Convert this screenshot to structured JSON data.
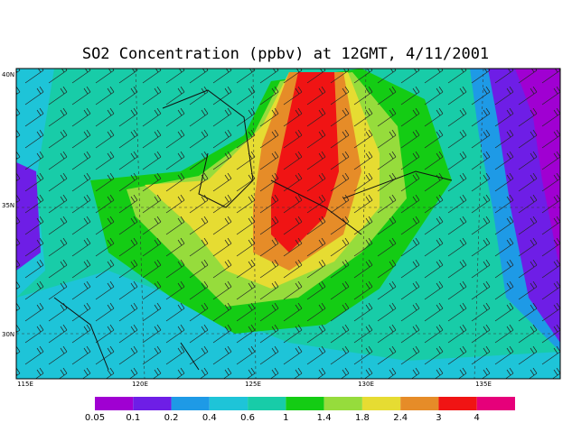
{
  "title": "SO2 Concentration (ppbv) at 12GMT, 4/11/2001",
  "map": {
    "lon_labels": [
      "115E",
      "120E",
      "125E",
      "130E",
      "135E"
    ],
    "lat_labels": [
      "40N",
      "35N",
      "30N"
    ]
  },
  "legend": {
    "labels": [
      0.05,
      0.1,
      0.2,
      0.4,
      0.6,
      1,
      1.4,
      1.8,
      2.4,
      3,
      4
    ],
    "colors": [
      "#a000d2",
      "#6e1ee6",
      "#1e9ae6",
      "#1ec4d8",
      "#18cca8",
      "#14cc14",
      "#96dc3c",
      "#e6dc32",
      "#e68c28",
      "#f01414",
      "#e6007a"
    ]
  }
}
